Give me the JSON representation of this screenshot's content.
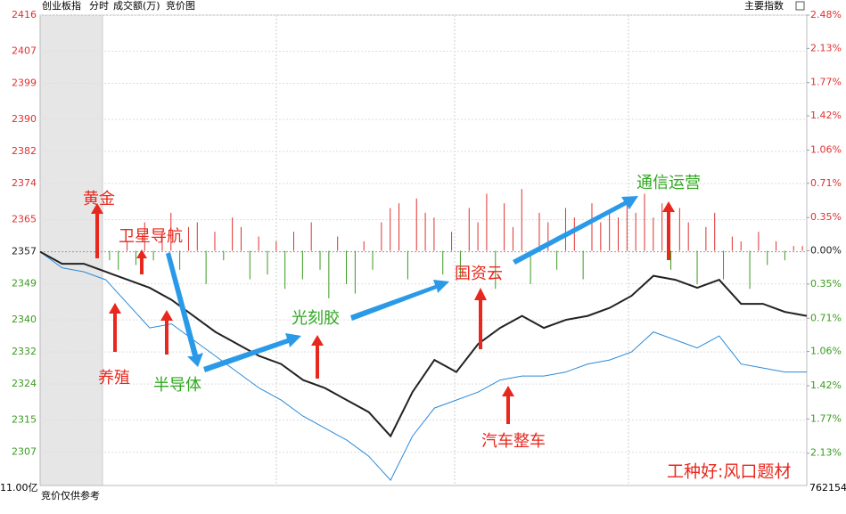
{
  "chart_data": {
    "type": "intraday",
    "title": "创业板指",
    "tabs": [
      "分时",
      "成交额(万)",
      "竞价图"
    ],
    "right_title": "主要指数",
    "auction_note": "竞价仅供参考",
    "volume_left_label": "11.00亿",
    "volume_right_label": "762154",
    "watermark": "工种好:风口题材",
    "annotations": [
      "黄金",
      "卫星导航",
      "养殖",
      "半导体",
      "光刻胶",
      "国资云",
      "汽车整车",
      "通信运营"
    ],
    "ylim": [
      2298.7,
      2416
    ],
    "yticks": [
      2416,
      2407,
      2399,
      2390,
      2382,
      2374,
      2365,
      2357,
      2349,
      2340,
      2332,
      2324,
      2315,
      2307
    ],
    "y2lim": [
      -2.47,
      2.48
    ],
    "y2ticks": [
      {
        "value": 2.48,
        "label": "2.48%"
      },
      {
        "value": 2.13,
        "label": "2.13%"
      },
      {
        "value": 1.77,
        "label": "1.77%"
      },
      {
        "value": 1.42,
        "label": "1.42%"
      },
      {
        "value": 1.06,
        "label": "1.06%"
      },
      {
        "value": 0.71,
        "label": "0.71%"
      },
      {
        "value": 0.35,
        "label": "0.35%"
      },
      {
        "value": 0,
        "label": "0.00%"
      },
      {
        "value": -0.35,
        "label": "0.35%"
      },
      {
        "value": -0.71,
        "label": "0.71%"
      },
      {
        "value": -1.06,
        "label": "1.06%"
      },
      {
        "value": -1.42,
        "label": "1.42%"
      },
      {
        "value": -1.77,
        "label": "1.77%"
      },
      {
        "value": -2.13,
        "label": "2.13%"
      }
    ],
    "up_color": "#e03030",
    "down_color": "#3a9a20",
    "series": [
      {
        "color": "#222222",
        "values": [
          2357,
          2354,
          2354,
          2352,
          2350,
          2348,
          2345,
          2341,
          2337,
          2334,
          2331,
          2329,
          2325,
          2323,
          2320,
          2317,
          2311,
          2322,
          2330,
          2327,
          2334,
          2338,
          2341,
          2338,
          2340,
          2341,
          2343,
          2346,
          2351,
          2350,
          2348,
          2350,
          2344,
          2344,
          2342,
          2341
        ]
      },
      {
        "color": "#2a8ad8",
        "values": [
          2357,
          2353,
          2352,
          2350,
          2344,
          2338,
          2339,
          2335,
          2331,
          2327,
          2323,
          2320,
          2316,
          2313,
          2310,
          2306,
          2300,
          2311,
          2318,
          2320,
          2322,
          2325,
          2326,
          2326,
          2327,
          2329,
          2330,
          2332,
          2337,
          2335,
          2333,
          2336,
          2329,
          2328,
          2327,
          2327
        ]
      },
      {
        "axis": "y2",
        "values": [
          -0.1,
          -0.2,
          0.1,
          -0.15,
          0.3,
          -0.1,
          0.2,
          0.4,
          -0.2,
          0.25,
          0.3,
          -0.35,
          0.2,
          -0.1,
          0.35,
          0.25,
          -0.3,
          0.15,
          -0.25,
          0.1,
          -0.4,
          0.2,
          -0.3,
          0.3,
          -0.2,
          -0.5,
          0.15,
          -0.35,
          -0.45,
          0.1,
          -0.2,
          0.3,
          0.45,
          0.5,
          -0.3,
          0.55,
          0.4,
          0.35,
          -0.25,
          0.2,
          -0.3,
          0.45,
          0.3,
          0.6,
          -0.4,
          0.5,
          0.25,
          0.65,
          -0.35,
          0.4,
          0.3,
          -0.2,
          0.45,
          0.35,
          -0.3,
          0.5,
          0.3,
          0.4,
          0.35,
          0.55,
          0.4,
          0.6,
          0.35,
          0.5,
          -0.2,
          0.45,
          0.3,
          -0.35,
          0.25,
          0.4,
          -0.3,
          0.15,
          0.1,
          -0.4,
          0.2,
          -0.15,
          0.1,
          -0.1,
          0.05,
          0.05
        ]
      }
    ]
  }
}
